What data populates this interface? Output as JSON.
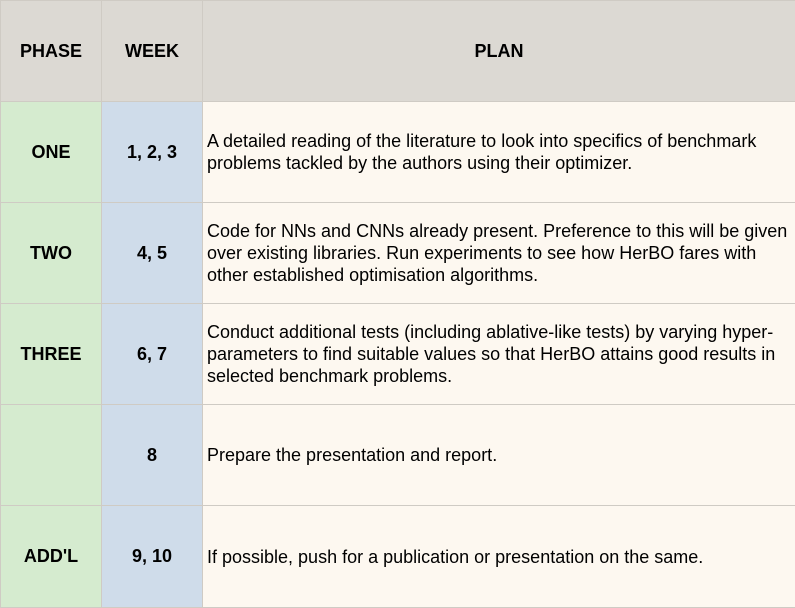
{
  "colors": {
    "header_bg": "#dcd9d3",
    "phase_bg": "#d5ebcf",
    "week_bg": "#cfdcea",
    "plan_bg": "#fdf8f0",
    "border": "#cfcbc4"
  },
  "header": {
    "phase": "PHASE",
    "week": "WEEK",
    "plan": "PLAN"
  },
  "rows": [
    {
      "phase": "ONE",
      "week": "1, 2, 3",
      "plan": "A detailed reading of the literature to look into specifics of benchmark problems tackled by the authors using their optimizer."
    },
    {
      "phase": "TWO",
      "week": "4, 5",
      "plan": "Code for NNs and CNNs already present. Preference to this will be given over existing libraries. Run experiments to see how HerBO fares with other established optimisation algorithms."
    },
    {
      "phase": "THREE",
      "week": "6, 7",
      "plan": "Conduct additional tests (including ablative-like tests) by varying hyper-parameters to find suitable values so that HerBO attains good results in selected benchmark problems."
    },
    {
      "phase": "",
      "week": "8",
      "plan": "Prepare the presentation and report."
    },
    {
      "phase": "ADD'L",
      "week": "9, 10",
      "plan": "If possible, push for a publication or presentation on the same."
    }
  ]
}
